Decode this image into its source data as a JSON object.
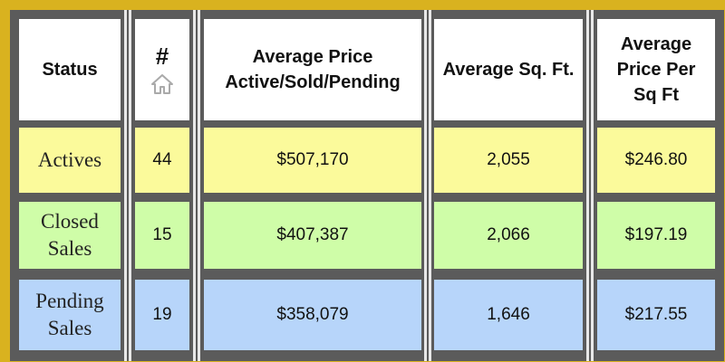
{
  "table": {
    "headers": {
      "status": "Status",
      "count_symbol": "#",
      "avg_price": [
        "Average Price",
        "Active/Sold/Pending"
      ],
      "avg_sqft": "Average Sq. Ft.",
      "avg_ppsf": [
        "Average",
        "Price Per",
        "Sq Ft"
      ]
    },
    "rows": [
      {
        "status": [
          "Actives"
        ],
        "count": "44",
        "avg_price": "$507,170",
        "avg_sqft": "2,055",
        "avg_ppsf": "$246.80"
      },
      {
        "status": [
          "Closed",
          "Sales"
        ],
        "count": "15",
        "avg_price": "$407,387",
        "avg_sqft": "2,066",
        "avg_ppsf": "$197.19"
      },
      {
        "status": [
          "Pending",
          "Sales"
        ],
        "count": "19",
        "avg_price": "$358,079",
        "avg_sqft": "1,646",
        "avg_ppsf": "$217.55"
      }
    ],
    "colors": {
      "frame": "#d9b21f",
      "grid": "#5b5b5b",
      "header_bg": "#ffffff",
      "actives_bg": "#fbfa9b",
      "closed_bg": "#cffda8",
      "pending_bg": "#b7d5fa"
    },
    "icons": {
      "count_header_icon": "house-icon"
    }
  }
}
